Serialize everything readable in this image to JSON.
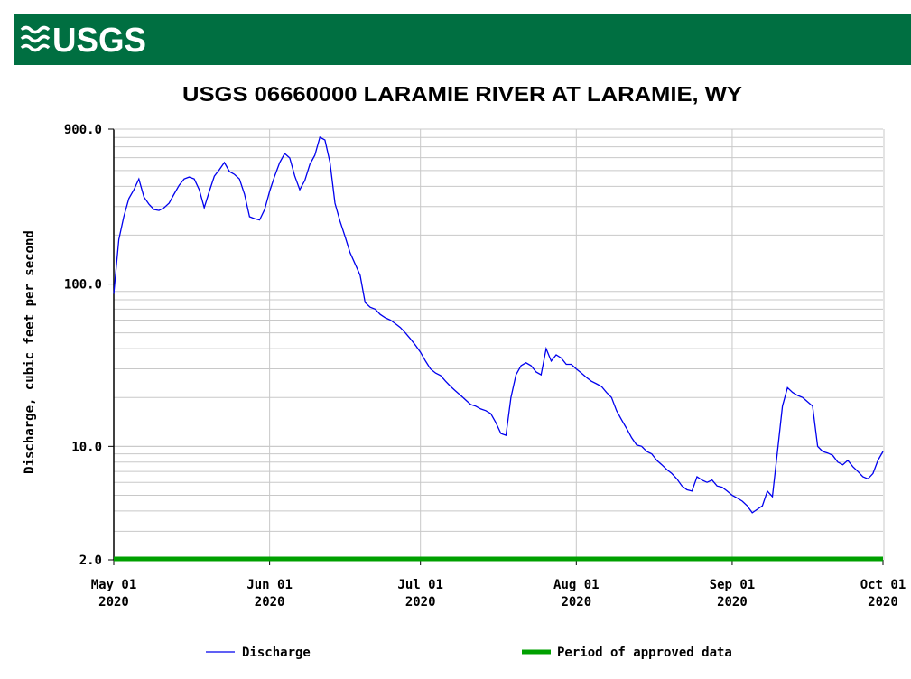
{
  "header": {
    "logo": "USGS"
  },
  "chart_data": {
    "type": "line",
    "title": "USGS 06660000 LARAMIE RIVER AT LARAMIE, WY",
    "y_label": "Discharge, cubic feet per second",
    "log_y": true,
    "grid": true,
    "ylim": [
      2,
      900
    ],
    "yticks": [
      {
        "value": 900,
        "label": "900.0"
      },
      {
        "value": 100,
        "label": "100.0"
      },
      {
        "value": 10,
        "label": "10.0"
      },
      {
        "value": 2,
        "label": "2.0"
      }
    ],
    "xlim": [
      "2020-05-01",
      "2020-10-01"
    ],
    "xticks": [
      {
        "value": "2020-05-01",
        "label": "May 01\n2020"
      },
      {
        "value": "2020-06-01",
        "label": "Jun 01\n2020"
      },
      {
        "value": "2020-07-01",
        "label": "Jul 01\n2020"
      },
      {
        "value": "2020-08-01",
        "label": "Aug 01\n2020"
      },
      {
        "value": "2020-09-01",
        "label": "Sep 01\n2020"
      },
      {
        "value": "2020-10-01",
        "label": "Oct 01\n2020"
      }
    ],
    "x": [
      "2020-05-01",
      "2020-05-02",
      "2020-05-03",
      "2020-05-04",
      "2020-05-05",
      "2020-05-06",
      "2020-05-07",
      "2020-05-08",
      "2020-05-09",
      "2020-05-10",
      "2020-05-11",
      "2020-05-12",
      "2020-05-13",
      "2020-05-14",
      "2020-05-15",
      "2020-05-16",
      "2020-05-17",
      "2020-05-18",
      "2020-05-19",
      "2020-05-20",
      "2020-05-21",
      "2020-05-22",
      "2020-05-23",
      "2020-05-24",
      "2020-05-25",
      "2020-05-26",
      "2020-05-27",
      "2020-05-28",
      "2020-05-29",
      "2020-05-30",
      "2020-05-31",
      "2020-06-01",
      "2020-06-02",
      "2020-06-03",
      "2020-06-04",
      "2020-06-05",
      "2020-06-06",
      "2020-06-07",
      "2020-06-08",
      "2020-06-09",
      "2020-06-10",
      "2020-06-11",
      "2020-06-12",
      "2020-06-13",
      "2020-06-14",
      "2020-06-15",
      "2020-06-16",
      "2020-06-17",
      "2020-06-18",
      "2020-06-19",
      "2020-06-20",
      "2020-06-21",
      "2020-06-22",
      "2020-06-23",
      "2020-06-24",
      "2020-06-25",
      "2020-06-26",
      "2020-06-27",
      "2020-06-28",
      "2020-06-29",
      "2020-06-30",
      "2020-07-01",
      "2020-07-02",
      "2020-07-03",
      "2020-07-04",
      "2020-07-05",
      "2020-07-06",
      "2020-07-07",
      "2020-07-08",
      "2020-07-09",
      "2020-07-10",
      "2020-07-11",
      "2020-07-12",
      "2020-07-13",
      "2020-07-14",
      "2020-07-15",
      "2020-07-16",
      "2020-07-17",
      "2020-07-18",
      "2020-07-19",
      "2020-07-20",
      "2020-07-21",
      "2020-07-22",
      "2020-07-23",
      "2020-07-24",
      "2020-07-25",
      "2020-07-26",
      "2020-07-27",
      "2020-07-28",
      "2020-07-29",
      "2020-07-30",
      "2020-07-31",
      "2020-08-01",
      "2020-08-02",
      "2020-08-03",
      "2020-08-04",
      "2020-08-05",
      "2020-08-06",
      "2020-08-07",
      "2020-08-08",
      "2020-08-09",
      "2020-08-10",
      "2020-08-11",
      "2020-08-12",
      "2020-08-13",
      "2020-08-14",
      "2020-08-15",
      "2020-08-16",
      "2020-08-17",
      "2020-08-18",
      "2020-08-19",
      "2020-08-20",
      "2020-08-21",
      "2020-08-22",
      "2020-08-23",
      "2020-08-24",
      "2020-08-25",
      "2020-08-26",
      "2020-08-27",
      "2020-08-28",
      "2020-08-29",
      "2020-08-30",
      "2020-08-31",
      "2020-09-01",
      "2020-09-02",
      "2020-09-03",
      "2020-09-04",
      "2020-09-05",
      "2020-09-06",
      "2020-09-07",
      "2020-09-08",
      "2020-09-09",
      "2020-09-10",
      "2020-09-11",
      "2020-09-12",
      "2020-09-13",
      "2020-09-14",
      "2020-09-15",
      "2020-09-16",
      "2020-09-17",
      "2020-09-18",
      "2020-09-19",
      "2020-09-20",
      "2020-09-21",
      "2020-09-22",
      "2020-09-23",
      "2020-09-24",
      "2020-09-25",
      "2020-09-26",
      "2020-09-27",
      "2020-09-28",
      "2020-09-29",
      "2020-09-30",
      "2020-10-01"
    ],
    "series": [
      {
        "name": "Discharge",
        "color": "#0000ee",
        "values": [
          87,
          188,
          260,
          336,
          381,
          444,
          344,
          310,
          288,
          284,
          295,
          315,
          358,
          406,
          444,
          456,
          444,
          381,
          295,
          372,
          462,
          506,
          560,
          493,
          474,
          444,
          358,
          260,
          253,
          248,
          288,
          372,
          462,
          560,
          637,
          597,
          462,
          381,
          434,
          546,
          621,
          802,
          771,
          560,
          315,
          244,
          196,
          156,
          133,
          113,
          77,
          72,
          70,
          65,
          62,
          60,
          57,
          54,
          50,
          46,
          42,
          38,
          33.5,
          30,
          28.3,
          27.3,
          25.2,
          23.4,
          21.9,
          20.6,
          19.3,
          18.1,
          17.7,
          17,
          16.6,
          15.9,
          14,
          12,
          11.7,
          20,
          27.6,
          31.4,
          32.7,
          31.4,
          28.7,
          27.6,
          40,
          33.5,
          36.6,
          35,
          32,
          32,
          30,
          28.3,
          26.6,
          25.2,
          24.3,
          23.4,
          21.5,
          20,
          16.6,
          14.6,
          12.9,
          11.3,
          10.2,
          10,
          9.3,
          9,
          8.2,
          7.7,
          7.2,
          6.8,
          6.3,
          5.7,
          5.4,
          5.3,
          6.5,
          6.2,
          6,
          6.2,
          5.7,
          5.6,
          5.3,
          5,
          4.8,
          4.6,
          4.3,
          3.9,
          4.1,
          4.3,
          5.3,
          4.9,
          9.3,
          17.7,
          23,
          21.5,
          20.6,
          20,
          18.8,
          17.7,
          10,
          9.3,
          9.1,
          8.8,
          8,
          7.7,
          8.2,
          7.5,
          7,
          6.5,
          6.3,
          6.8,
          8.2,
          9.3
        ]
      }
    ],
    "approved_period": {
      "name": "Period of approved data",
      "color": "#00a000",
      "x": [
        "2020-05-01",
        "2020-10-01"
      ]
    }
  }
}
